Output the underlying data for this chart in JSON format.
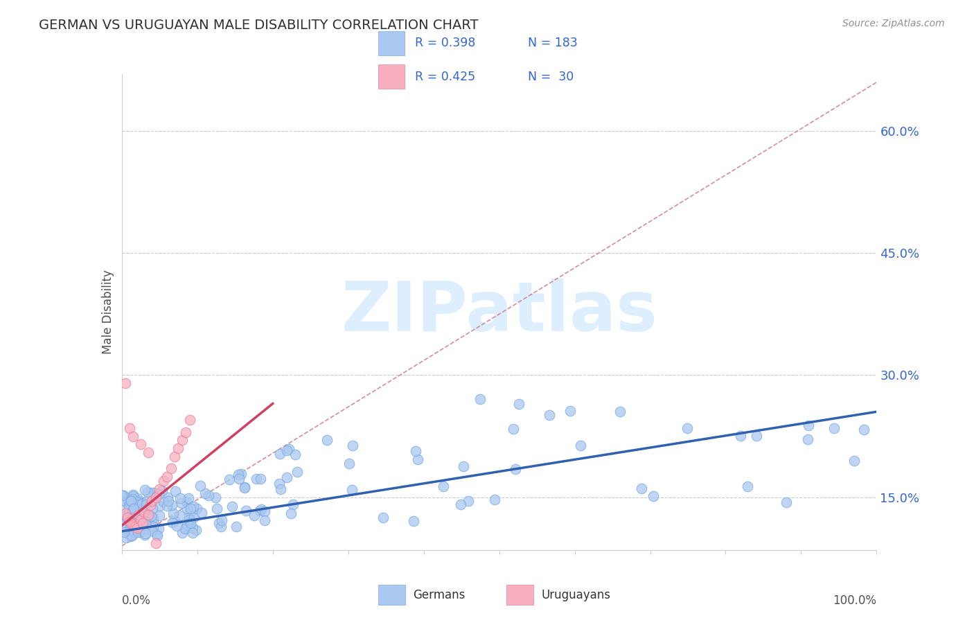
{
  "title": "GERMAN VS URUGUAYAN MALE DISABILITY CORRELATION CHART",
  "source": "Source: ZipAtlas.com",
  "ylabel": "Male Disability",
  "xmin": 0.0,
  "xmax": 1.0,
  "ymin": 0.085,
  "ymax": 0.67,
  "german_R": 0.398,
  "german_N": 183,
  "uruguayan_R": 0.425,
  "uruguayan_N": 30,
  "german_color": "#aac8f0",
  "german_edge_color": "#7aaae0",
  "uruguayan_color": "#f8b0c0",
  "uruguayan_edge_color": "#e880a0",
  "german_line_color": "#3060b0",
  "uruguayan_line_color": "#d04060",
  "ref_line_color": "#d08090",
  "background_color": "#ffffff",
  "title_color": "#303030",
  "title_fontsize": 14,
  "legend_text_color": "#3366cc",
  "legend_label_color": "#222222",
  "ytick_color": "#3366cc",
  "yticks": [
    0.15,
    0.3,
    0.45,
    0.6
  ],
  "ytick_labels": [
    "15.0%",
    "30.0%",
    "45.0%",
    "60.0%"
  ],
  "watermark_text": "ZIPatlas",
  "watermark_color": "#ddeeff",
  "german_line_start_x": 0.0,
  "german_line_end_x": 1.0,
  "german_line_start_y": 0.108,
  "german_line_end_y": 0.255,
  "uruguayan_line_start_x": 0.0,
  "uruguayan_line_end_x": 0.2,
  "uruguayan_line_start_y": 0.115,
  "uruguayan_line_end_y": 0.265,
  "ref_line_start_x": 0.0,
  "ref_line_end_x": 1.0,
  "ref_line_start_y": 0.09,
  "ref_line_end_y": 0.66
}
